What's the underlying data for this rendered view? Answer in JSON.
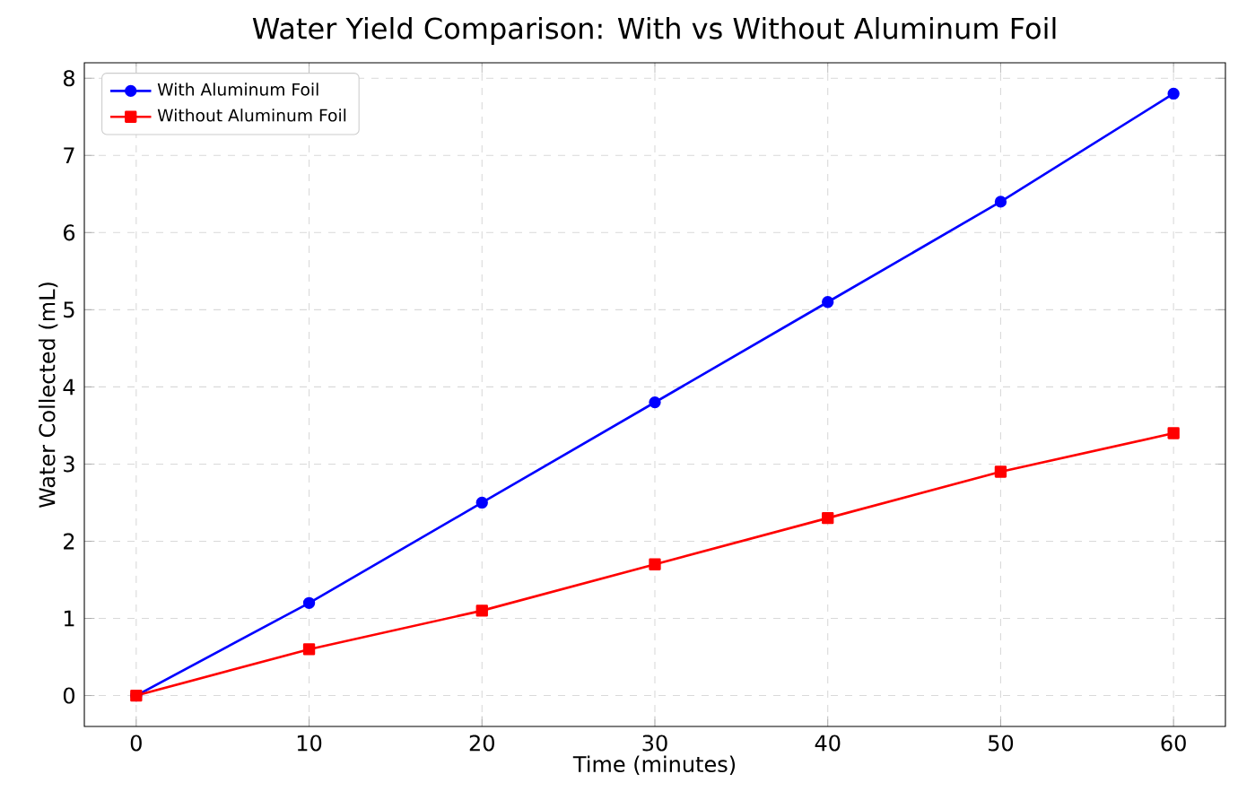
{
  "chart_data": {
    "type": "line",
    "title": "Water Yield Comparison: With vs Without Aluminum Foil",
    "xlabel": "Time (minutes)",
    "ylabel": "Water Collected (mL)",
    "x": [
      0,
      10,
      20,
      30,
      40,
      50,
      60
    ],
    "series": [
      {
        "name": "With Aluminum Foil",
        "color": "#0000ff",
        "marker": "circle",
        "values": [
          0,
          1.2,
          2.5,
          3.8,
          5.1,
          6.4,
          7.8
        ]
      },
      {
        "name": "Without Aluminum Foil",
        "color": "#ff0000",
        "marker": "square",
        "values": [
          0,
          0.6,
          1.1,
          1.7,
          2.3,
          2.9,
          3.4
        ]
      }
    ],
    "xlim": [
      -3,
      63
    ],
    "ylim": [
      -0.4,
      8.2
    ],
    "xticks": [
      0,
      10,
      20,
      30,
      40,
      50,
      60
    ],
    "yticks": [
      0,
      1,
      2,
      3,
      4,
      5,
      6,
      7,
      8
    ],
    "grid": true,
    "legend": "top left",
    "line_style": "solid"
  }
}
